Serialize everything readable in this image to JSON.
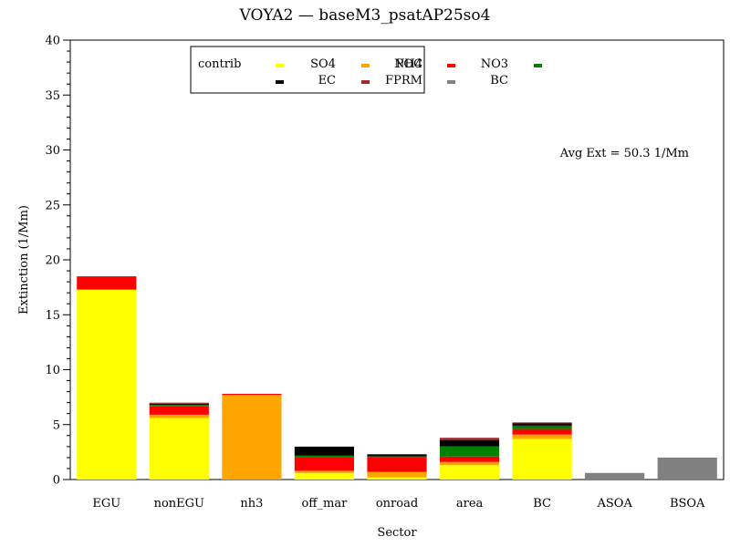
{
  "chart_data": {
    "type": "bar",
    "stacked": true,
    "title": "VOYA2  —  baseM3_psatAP25so4",
    "xlabel": "Sector",
    "ylabel": "Extinction  (1/Mm)",
    "ylim": [
      0,
      40
    ],
    "yticks": [
      0,
      5,
      10,
      15,
      20,
      25,
      30,
      35,
      40
    ],
    "categories": [
      "EGU",
      "nonEGU",
      "nh3",
      "off_mar",
      "onroad",
      "area",
      "BC",
      "ASOA",
      "BSOA"
    ],
    "legend_title": "contrib",
    "annotation": "Avg Ext =  50.3 1/Mm",
    "series": [
      {
        "name": "SO4",
        "color": "#ffff00",
        "values": [
          17.3,
          5.6,
          0.0,
          0.6,
          0.2,
          1.3,
          3.7,
          0.0,
          0.0
        ]
      },
      {
        "name": "NH4",
        "color": "#ffa500",
        "values": [
          0.0,
          0.3,
          7.7,
          0.2,
          0.5,
          0.3,
          0.4,
          0.0,
          0.0
        ]
      },
      {
        "name": "NO3",
        "color": "#ff0000",
        "values": [
          1.2,
          0.8,
          0.1,
          1.2,
          1.3,
          0.5,
          0.5,
          0.0,
          0.0
        ]
      },
      {
        "name": "POC",
        "color": "#008000",
        "values": [
          0.0,
          0.1,
          0.0,
          0.2,
          0.1,
          0.9,
          0.3,
          0.0,
          0.0
        ]
      },
      {
        "name": "EC",
        "color": "#000000",
        "values": [
          0.0,
          0.1,
          0.0,
          0.8,
          0.2,
          0.6,
          0.2,
          0.0,
          0.0
        ]
      },
      {
        "name": "FPRM",
        "color": "#a52a2a",
        "values": [
          0.0,
          0.1,
          0.0,
          0.0,
          0.0,
          0.2,
          0.1,
          0.0,
          0.0
        ]
      },
      {
        "name": "BC",
        "color": "#808080",
        "values": [
          0.0,
          0.0,
          0.0,
          0.0,
          0.0,
          0.0,
          0.0,
          0.6,
          2.0
        ]
      }
    ]
  }
}
